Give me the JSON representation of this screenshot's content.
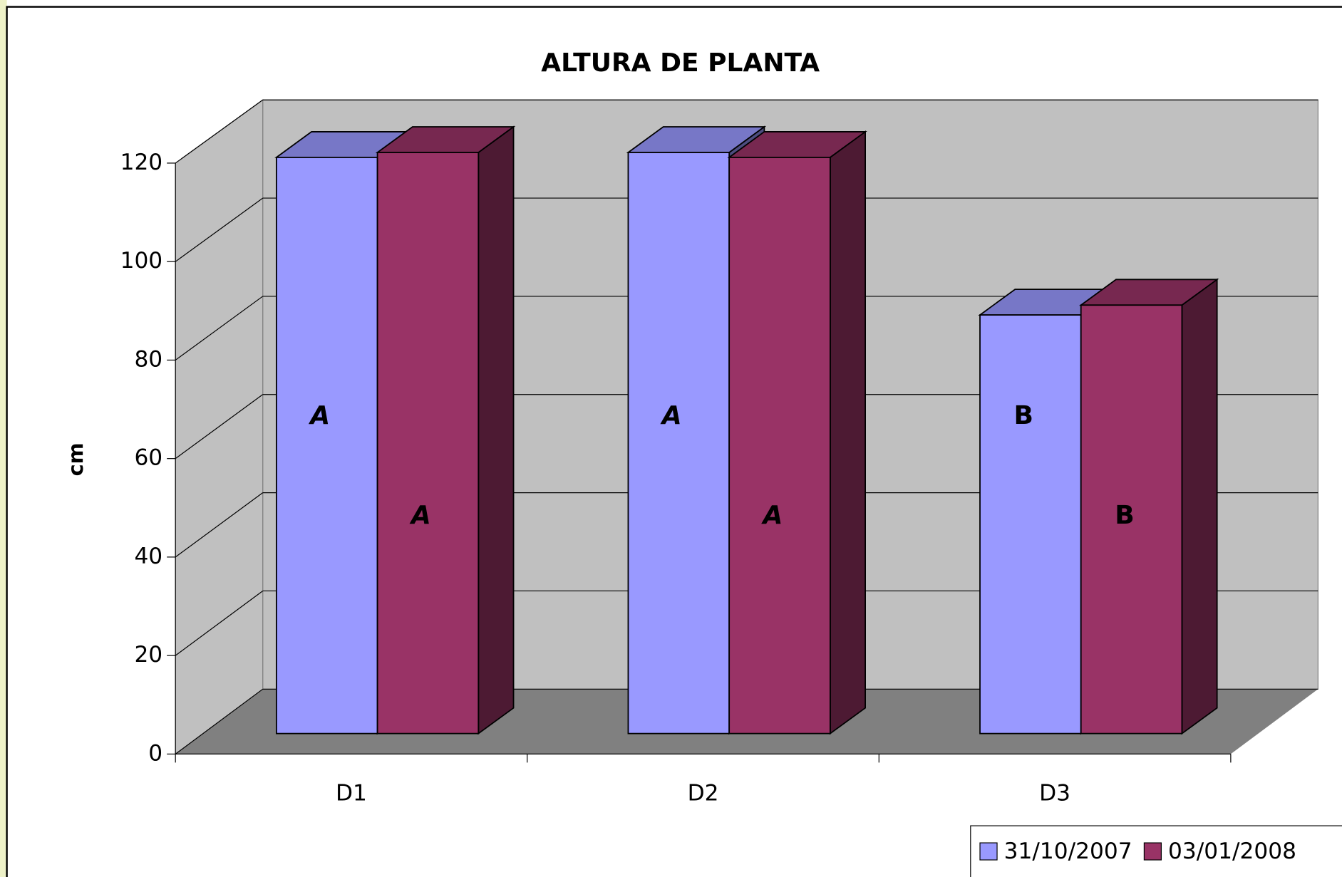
{
  "chart_data": {
    "type": "bar3d",
    "title": "ALTURA DE PLANTA",
    "y_label": "cm",
    "categories": [
      "D1",
      "D2",
      "D3"
    ],
    "series": [
      {
        "name": "31/10/2007",
        "color": "#9999ff",
        "values": [
          117,
          118,
          85
        ],
        "labels": [
          "A",
          "A",
          "B"
        ]
      },
      {
        "name": "03/01/2008",
        "color": "#993366",
        "values": [
          118,
          117,
          87
        ],
        "labels": [
          "A",
          "A",
          "B"
        ]
      }
    ],
    "ylim": [
      0,
      120
    ],
    "yticks": [
      0,
      20,
      40,
      60,
      80,
      100,
      120
    ],
    "grid": true,
    "legend": "bottom-right"
  }
}
